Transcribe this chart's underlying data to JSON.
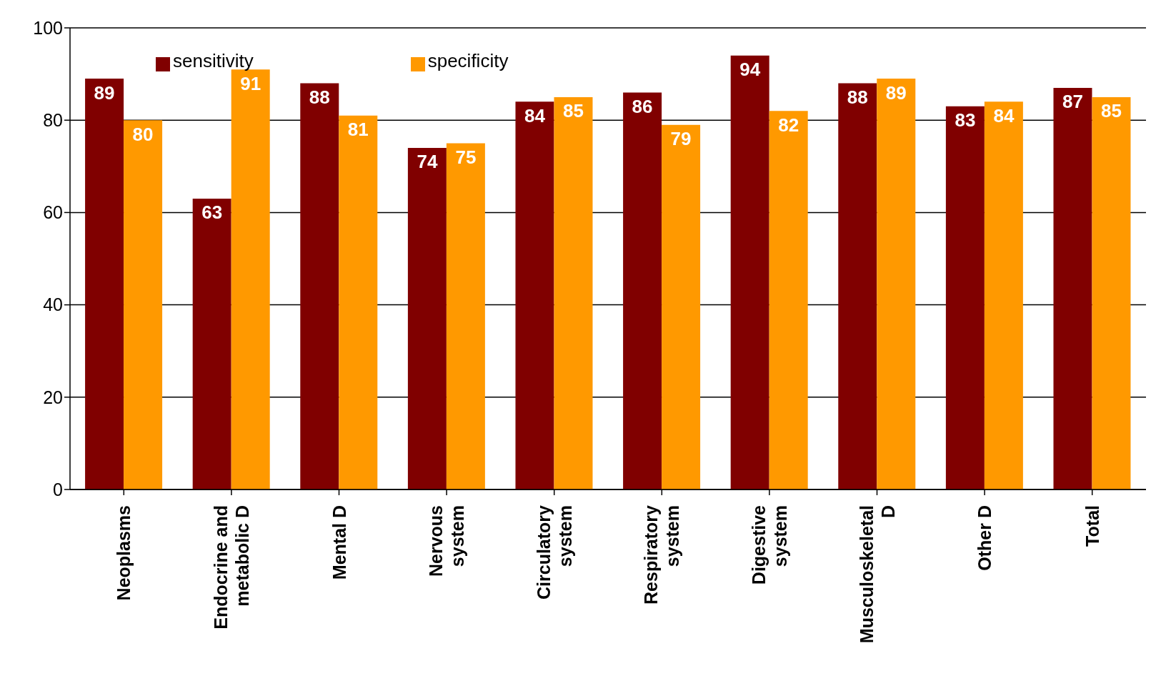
{
  "chart_data": {
    "type": "bar",
    "categories": [
      "Neoplasms",
      "Endocrine and metabolic D",
      "Mental D",
      "Nervous system",
      "Circulatory system",
      "Respiratory system",
      "Digestive system",
      "Musculoskeletal D",
      "Other D",
      "Total"
    ],
    "series": [
      {
        "name": "sensitivity",
        "color": "#800000",
        "values": [
          89,
          63,
          88,
          74,
          84,
          86,
          94,
          88,
          83,
          87
        ]
      },
      {
        "name": "specificity",
        "color": "#ff9900",
        "values": [
          80,
          91,
          81,
          75,
          85,
          79,
          82,
          89,
          84,
          85
        ]
      }
    ],
    "ylim": [
      0,
      100
    ],
    "yticks": [
      0,
      20,
      40,
      60,
      80,
      100
    ],
    "grid": "y",
    "legend": "top left",
    "data_labels": true
  }
}
